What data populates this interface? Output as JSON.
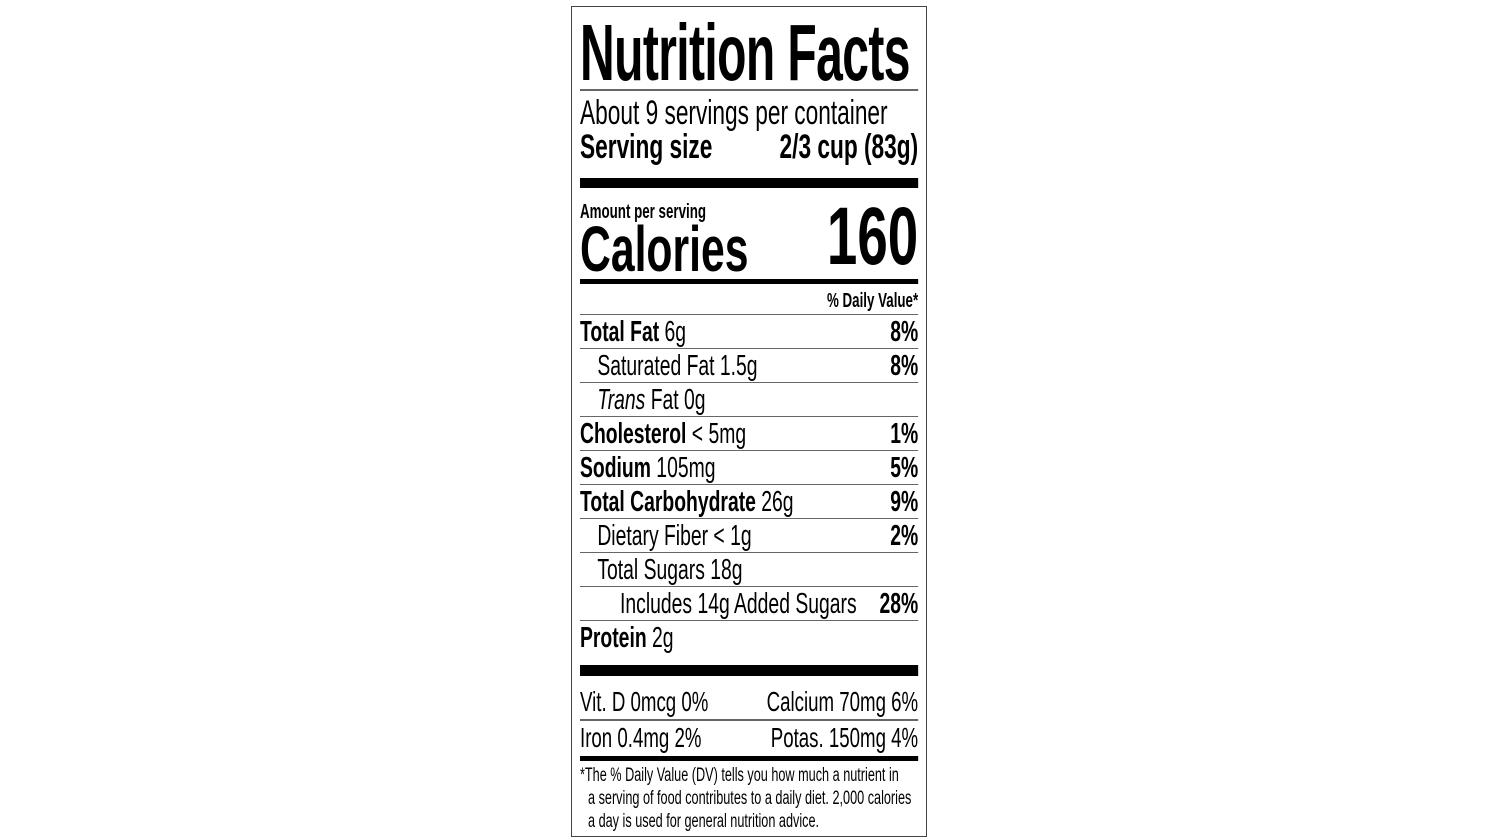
{
  "label": {
    "title": "Nutrition Facts",
    "servings_per_container": "About 9 servings per container",
    "serving_size_label": "Serving size",
    "serving_size_value": "2/3 cup (83g)",
    "amount_per_serving": "Amount per serving",
    "calories_label": "Calories",
    "calories_value": "160",
    "daily_value_header": "% Daily Value*",
    "nutrients": [
      {
        "name": "Total Fat",
        "amount": "6g",
        "dv": "8%"
      },
      {
        "name": "Saturated Fat 1.5g",
        "amount": "",
        "dv": "8%"
      },
      {
        "name": "Trans",
        "amount": "Fat 0g",
        "dv": ""
      },
      {
        "name": "Cholesterol",
        "amount": "< 5mg",
        "dv": "1%"
      },
      {
        "name": "Sodium",
        "amount": "105mg",
        "dv": "5%"
      },
      {
        "name": "Total Carbohydrate",
        "amount": "26g",
        "dv": "9%"
      },
      {
        "name": "Dietary Fiber < 1g",
        "amount": "",
        "dv": "2%"
      },
      {
        "name": "Total Sugars 18g",
        "amount": "",
        "dv": ""
      },
      {
        "name": "Includes 14g Added Sugars",
        "amount": "",
        "dv": "28%"
      },
      {
        "name": "Protein",
        "amount": "2g",
        "dv": ""
      }
    ],
    "vitamins": [
      {
        "left": "Vit. D 0mcg 0%",
        "right": "Calcium 70mg 6%"
      },
      {
        "left": "Iron 0.4mg 2%",
        "right": "Potas. 150mg 4%"
      }
    ],
    "footnote": [
      "*The % Daily Value (DV) tells you how much a nutrient in",
      "a serving of food contributes to a daily diet. 2,000 calories",
      "a day is used for general nutrition advice."
    ]
  }
}
